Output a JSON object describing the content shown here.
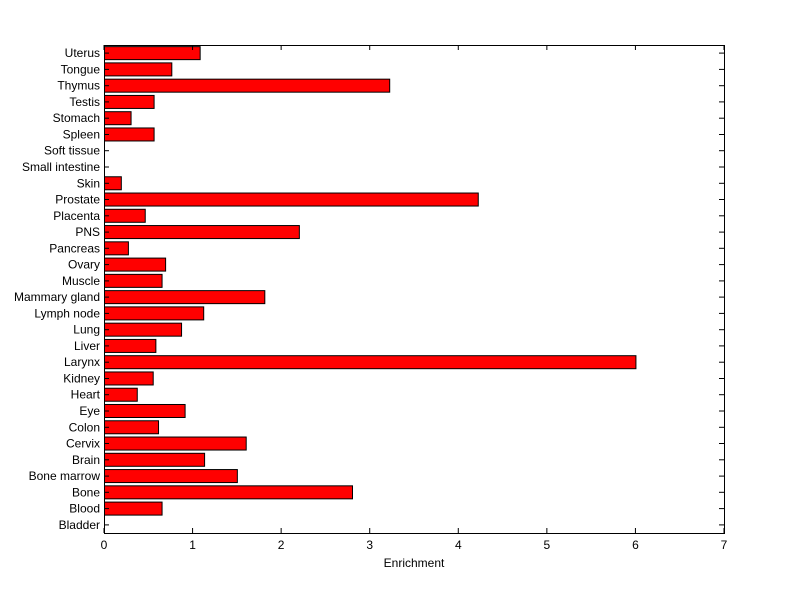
{
  "chart_data": {
    "type": "bar",
    "orientation": "horizontal",
    "categories": [
      "Uterus",
      "Tongue",
      "Thymus",
      "Testis",
      "Stomach",
      "Spleen",
      "Soft tissue",
      "Small intestine",
      "Skin",
      "Prostate",
      "Placenta",
      "PNS",
      "Pancreas",
      "Ovary",
      "Muscle",
      "Mammary gland",
      "Lymph node",
      "Lung",
      "Liver",
      "Larynx",
      "Kidney",
      "Heart",
      "Eye",
      "Colon",
      "Cervix",
      "Brain",
      "Bone marrow",
      "Bone",
      "Blood",
      "Bladder"
    ],
    "values": [
      1.08,
      0.76,
      3.22,
      0.56,
      0.3,
      0.56,
      0,
      0,
      0.19,
      4.22,
      0.46,
      2.2,
      0.27,
      0.69,
      0.65,
      1.81,
      1.12,
      0.87,
      0.58,
      6.0,
      0.55,
      0.37,
      0.91,
      0.61,
      1.6,
      1.13,
      1.5,
      2.8,
      0.65,
      0
    ],
    "xlabel": "Enrichment",
    "ylabel": "",
    "title": "",
    "xlim": [
      0,
      7
    ],
    "xticks": [
      0,
      1,
      2,
      3,
      4,
      5,
      6,
      7
    ],
    "bar_color": "#ff0000",
    "grid": false
  }
}
